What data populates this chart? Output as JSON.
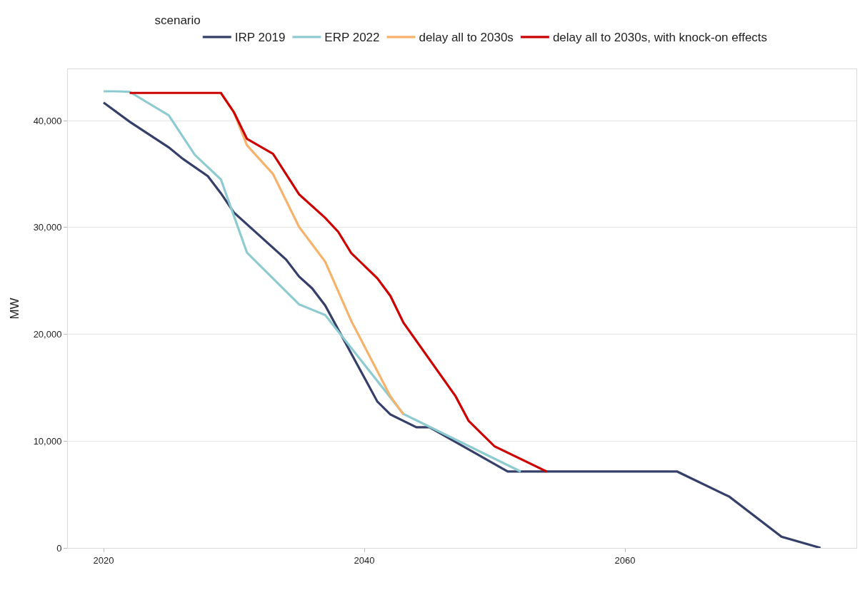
{
  "chart_data": {
    "type": "line",
    "ylabel": "MW",
    "legend_title": "scenario",
    "legend": "top",
    "grid": "y",
    "marker": "none",
    "line_style": "solid",
    "xlim": [
      2017.26,
      2077.75
    ],
    "xticks": [
      2020,
      2040,
      2060
    ],
    "ylim": [
      0,
      44820
    ],
    "yticks": [
      {
        "value": 0,
        "label": "0"
      },
      {
        "value": 10000,
        "label": "10,000"
      },
      {
        "value": 20000,
        "label": "20,000"
      },
      {
        "value": 30000,
        "label": "30,000"
      },
      {
        "value": 40000,
        "label": "40,000"
      }
    ],
    "series": [
      {
        "name": "IRP 2019",
        "color": "#353f69",
        "x": [
          2020,
          2022,
          2025,
          2026,
          2028,
          2029,
          2030,
          2034,
          2035,
          2036,
          2037,
          2041,
          2042,
          2044,
          2045,
          2051,
          2064,
          2068,
          2072,
          2075
        ],
        "values": [
          41700,
          39900,
          37500,
          36500,
          34800,
          33200,
          31400,
          27000,
          25400,
          24300,
          22700,
          13700,
          12500,
          11300,
          11300,
          7150,
          7150,
          4800,
          1050,
          0
        ]
      },
      {
        "name": "ERP 2022",
        "color": "#8ecbd1",
        "x": [
          2020,
          2021,
          2022,
          2025,
          2027,
          2029,
          2031,
          2035,
          2037,
          2043,
          2052
        ],
        "values": [
          42750,
          42750,
          42700,
          40500,
          36800,
          34500,
          27650,
          22800,
          21800,
          12550,
          7150
        ]
      },
      {
        "name": "delay all to 2030s",
        "color": "#f6b26b",
        "x": [
          2029,
          2030,
          2031,
          2033,
          2035,
          2037,
          2039,
          2042,
          2043
        ],
        "values": [
          42600,
          40750,
          37700,
          35000,
          30050,
          26800,
          21250,
          14200,
          12500
        ]
      },
      {
        "name": "delay all to 2030s, with knock-on effects",
        "color": "#cc0000",
        "x": [
          2022,
          2029,
          2030,
          2031,
          2033,
          2035,
          2037,
          2038,
          2039,
          2041,
          2042,
          2043,
          2047,
          2048,
          2049,
          2050,
          2054
        ],
        "values": [
          42600,
          42600,
          40800,
          38300,
          36900,
          33100,
          30900,
          29600,
          27600,
          25250,
          23600,
          21100,
          14200,
          11900,
          10700,
          9500,
          7150
        ]
      }
    ]
  }
}
